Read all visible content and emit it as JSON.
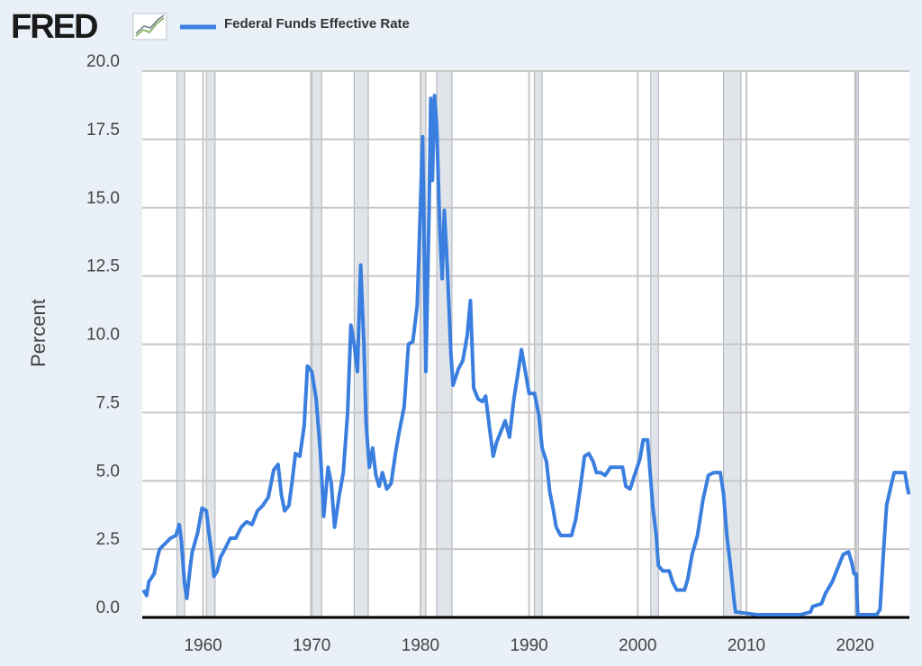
{
  "logo": "FRED",
  "chart_data": {
    "type": "line",
    "ylabel": "Percent",
    "xlim": [
      1954.4,
      2025.0
    ],
    "xticks": [
      1960,
      1970,
      1980,
      1990,
      2000,
      2010,
      2020
    ],
    "ylim": [
      0,
      20
    ],
    "yticks": [
      {
        "value": 0,
        "label": "0.0"
      },
      {
        "value": 2.5,
        "label": "2.5"
      },
      {
        "value": 5,
        "label": "5.0"
      },
      {
        "value": 7.5,
        "label": "7.5"
      },
      {
        "value": 10,
        "label": "10.0"
      },
      {
        "value": 12.5,
        "label": "12.5"
      },
      {
        "value": 15,
        "label": "15.0"
      },
      {
        "value": 17.5,
        "label": "17.5"
      },
      {
        "value": 20,
        "label": "20.0"
      }
    ],
    "grid": true,
    "recessions": [
      [
        1957.6,
        1958.3
      ],
      [
        1960.3,
        1961.1
      ],
      [
        1969.9,
        1970.9
      ],
      [
        1973.9,
        1975.2
      ],
      [
        1980.0,
        1980.5
      ],
      [
        1981.5,
        1982.9
      ],
      [
        1990.5,
        1991.2
      ],
      [
        2001.2,
        2001.9
      ],
      [
        2007.9,
        2009.5
      ],
      [
        2020.1,
        2020.3
      ]
    ],
    "x": [
      1954.5,
      1954.8,
      1955.0,
      1955.5,
      1955.8,
      1956.0,
      1956.5,
      1957.0,
      1957.5,
      1957.8,
      1958.0,
      1958.3,
      1958.5,
      1958.8,
      1959.0,
      1959.5,
      1959.9,
      1960.3,
      1960.5,
      1960.8,
      1961.0,
      1961.3,
      1961.6,
      1962.0,
      1962.5,
      1963.0,
      1963.5,
      1964.0,
      1964.5,
      1965.0,
      1965.5,
      1966.0,
      1966.5,
      1966.9,
      1967.2,
      1967.5,
      1967.9,
      1968.2,
      1968.5,
      1968.9,
      1969.3,
      1969.6,
      1970.0,
      1970.4,
      1970.8,
      1971.1,
      1971.5,
      1971.8,
      1972.1,
      1972.5,
      1972.9,
      1973.3,
      1973.6,
      1973.9,
      1974.2,
      1974.5,
      1974.8,
      1975.0,
      1975.3,
      1975.6,
      1975.9,
      1976.2,
      1976.5,
      1976.9,
      1977.3,
      1977.7,
      1978.0,
      1978.5,
      1978.9,
      1979.3,
      1979.7,
      1979.9,
      1980.2,
      1980.4,
      1980.5,
      1980.8,
      1980.95,
      1981.1,
      1981.3,
      1981.5,
      1981.8,
      1982.0,
      1982.2,
      1982.5,
      1982.8,
      1983.0,
      1983.5,
      1983.9,
      1984.3,
      1984.6,
      1984.9,
      1985.3,
      1985.7,
      1986.0,
      1986.4,
      1986.7,
      1987.0,
      1987.4,
      1987.8,
      1988.2,
      1988.6,
      1989.0,
      1989.3,
      1989.7,
      1990.0,
      1990.5,
      1990.9,
      1991.2,
      1991.6,
      1991.9,
      1992.2,
      1992.5,
      1992.9,
      1993.5,
      1993.9,
      1994.3,
      1994.7,
      1995.1,
      1995.5,
      1995.9,
      1996.2,
      1996.6,
      1997.0,
      1997.5,
      1998.0,
      1998.6,
      1998.9,
      1999.3,
      1999.7,
      2000.2,
      2000.5,
      2000.9,
      2001.1,
      2001.4,
      2001.7,
      2001.9,
      2002.3,
      2002.9,
      2003.2,
      2003.6,
      2004.3,
      2004.6,
      2005.0,
      2005.5,
      2006.0,
      2006.5,
      2007.0,
      2007.6,
      2007.9,
      2008.2,
      2008.5,
      2008.9,
      2009.0,
      2010.0,
      2011.0,
      2012.0,
      2013.0,
      2014.0,
      2015.0,
      2015.9,
      2016.1,
      2016.9,
      2017.3,
      2017.9,
      2018.5,
      2018.9,
      2019.4,
      2019.7,
      2019.9,
      2020.1,
      2020.25,
      2021.0,
      2022.0,
      2022.3,
      2022.6,
      2022.9,
      2023.3,
      2023.6,
      2024.6,
      2024.75,
      2024.95
    ],
    "series": [
      {
        "name": "Federal Funds Effective Rate",
        "color": "#3a7fdf",
        "values": [
          1.0,
          0.8,
          1.3,
          1.6,
          2.2,
          2.5,
          2.7,
          2.9,
          3.0,
          3.4,
          2.8,
          1.2,
          0.7,
          1.8,
          2.4,
          3.1,
          4.0,
          3.9,
          3.2,
          2.3,
          1.5,
          1.7,
          2.2,
          2.5,
          2.9,
          2.9,
          3.3,
          3.5,
          3.4,
          3.9,
          4.1,
          4.4,
          5.4,
          5.6,
          4.5,
          3.9,
          4.1,
          5.0,
          6.0,
          5.9,
          7.0,
          9.2,
          9.0,
          8.0,
          6.0,
          3.7,
          5.5,
          4.9,
          3.3,
          4.4,
          5.3,
          7.5,
          10.7,
          10.0,
          9.0,
          12.9,
          10.0,
          7.1,
          5.5,
          6.2,
          5.2,
          4.8,
          5.3,
          4.7,
          4.9,
          6.0,
          6.7,
          7.7,
          10.0,
          10.1,
          11.4,
          13.8,
          17.6,
          12.0,
          9.0,
          15.0,
          19.0,
          16.0,
          19.1,
          18.0,
          14.0,
          12.4,
          14.9,
          12.6,
          9.7,
          8.5,
          9.1,
          9.4,
          10.3,
          11.6,
          8.4,
          8.0,
          7.9,
          8.1,
          6.8,
          5.9,
          6.4,
          6.8,
          7.2,
          6.6,
          8.0,
          9.0,
          9.8,
          8.9,
          8.2,
          8.2,
          7.4,
          6.2,
          5.7,
          4.6,
          4.0,
          3.3,
          3.0,
          3.0,
          3.0,
          3.6,
          4.7,
          5.9,
          6.0,
          5.7,
          5.3,
          5.3,
          5.2,
          5.5,
          5.5,
          5.5,
          4.8,
          4.7,
          5.2,
          5.8,
          6.5,
          6.5,
          5.5,
          4.0,
          3.0,
          1.9,
          1.7,
          1.7,
          1.3,
          1.0,
          1.0,
          1.4,
          2.3,
          3.0,
          4.3,
          5.2,
          5.3,
          5.3,
          4.5,
          3.0,
          2.0,
          0.5,
          0.2,
          0.15,
          0.1,
          0.1,
          0.1,
          0.1,
          0.1,
          0.2,
          0.4,
          0.5,
          0.9,
          1.3,
          1.9,
          2.3,
          2.4,
          2.0,
          1.6,
          1.6,
          0.1,
          0.1,
          0.1,
          0.3,
          2.3,
          4.1,
          4.8,
          5.3,
          5.3,
          4.9,
          4.5
        ]
      }
    ]
  }
}
